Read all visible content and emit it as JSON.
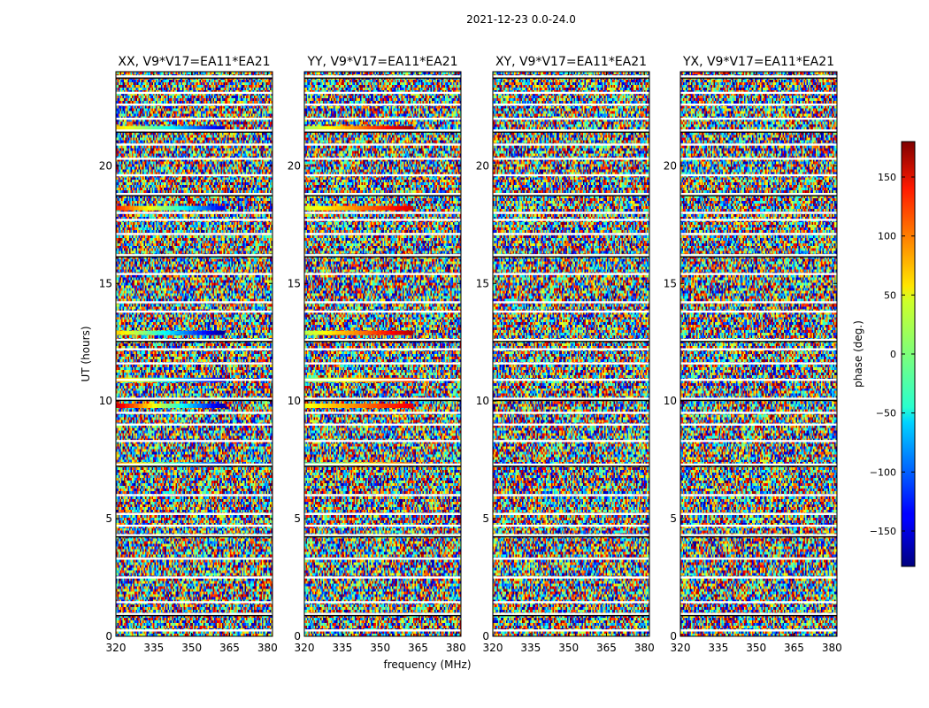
{
  "chart_data": {
    "type": "heatmap",
    "title": "2021-12-23 0.0-24.0",
    "xlabel": "frequency (MHz)",
    "ylabel": "UT (hours)",
    "xlim": [
      320,
      382
    ],
    "ylim": [
      0,
      24
    ],
    "xticks": [
      "320",
      "335",
      "350",
      "365",
      "380"
    ],
    "yticks": [
      "0",
      "5",
      "10",
      "15",
      "20"
    ],
    "panels": [
      {
        "title": "XX, V9*V17=EA11*EA21"
      },
      {
        "title": "YY, V9*V17=EA11*EA21"
      },
      {
        "title": "XY, V9*V17=EA11*EA21"
      },
      {
        "title": "YX, V9*V17=EA11*EA21"
      }
    ],
    "colorbar": {
      "label": "phase (deg.)",
      "range": [
        -180,
        180
      ],
      "ticks": [
        "150",
        "100",
        "50",
        "0",
        "−50",
        "−100",
        "−150"
      ],
      "colormap": "jet"
    },
    "flagged_rows_hours": [
      0.25,
      0.95,
      1.45,
      2.5,
      3.3,
      4.3,
      4.7,
      5.2,
      6.0,
      7.3,
      8.3,
      9.0,
      9.5,
      10.1,
      10.9,
      11.6,
      12.2,
      12.6,
      13.8,
      14.2,
      15.4,
      16.2,
      17.1,
      17.7,
      18.0,
      18.8,
      19.6,
      20.3,
      20.9,
      21.5,
      22.0,
      22.6,
      23.1,
      23.8
    ],
    "coherent_streaks": [
      {
        "panel": "XX",
        "ut": 21.6,
        "freq_max": 363,
        "phase_start": 60,
        "phase_end": -150
      },
      {
        "panel": "XX",
        "ut": 18.2,
        "freq_max": 363,
        "phase_start": 120,
        "phase_end": -140
      },
      {
        "panel": "XX",
        "ut": 12.9,
        "freq_max": 363,
        "phase_start": 60,
        "phase_end": -170
      },
      {
        "panel": "XX",
        "ut": 10.9,
        "freq_max": 363,
        "phase_start": 70,
        "phase_end": -150
      },
      {
        "panel": "XX",
        "ut": 9.8,
        "freq_max": 363,
        "phase_start": 150,
        "phase_end": -160
      },
      {
        "panel": "XX",
        "ut": 7.3,
        "freq_max": 363,
        "phase_start": 80,
        "phase_end": -120
      },
      {
        "panel": "YY",
        "ut": 21.6,
        "freq_max": 363,
        "phase_start": 10,
        "phase_end": 170
      },
      {
        "panel": "YY",
        "ut": 18.2,
        "freq_max": 363,
        "phase_start": 30,
        "phase_end": 150
      },
      {
        "panel": "YY",
        "ut": 12.9,
        "freq_max": 363,
        "phase_start": 20,
        "phase_end": 160
      },
      {
        "panel": "YY",
        "ut": 10.9,
        "freq_max": 363,
        "phase_start": 0,
        "phase_end": 120
      },
      {
        "panel": "YY",
        "ut": 9.8,
        "freq_max": 363,
        "phase_start": 40,
        "phase_end": 140
      },
      {
        "panel": "YY",
        "ut": 7.3,
        "freq_max": 363,
        "phase_start": -10,
        "phase_end": 90
      }
    ]
  }
}
